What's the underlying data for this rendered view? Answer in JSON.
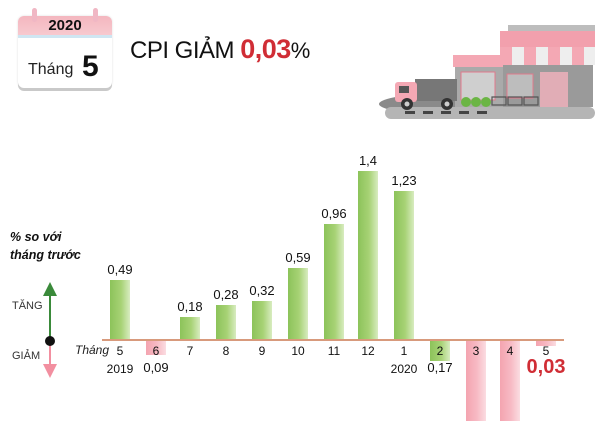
{
  "header": {
    "calendar": {
      "year": "2020",
      "month_label": "Tháng",
      "month_number": "5"
    },
    "headline": {
      "prefix": "CPI GIẢM",
      "value": "0,03",
      "unit": "%"
    },
    "illustration": "store-truck-illustration"
  },
  "legend": {
    "ylabel_line1": "% so với",
    "ylabel_line2": "tháng trước",
    "up_label": "TĂNG",
    "down_label": "GIẢM",
    "x_prefix": "Tháng"
  },
  "colors": {
    "increase": "#a7d275",
    "decrease": "#f7bac4",
    "highlight": "#d02d35",
    "axis": "#d89a7c",
    "up_arrow": "#3a8a3a",
    "down_arrow": "#f28fa0"
  },
  "chart_data": {
    "type": "bar",
    "title": "CPI GIẢM 0,03%",
    "ylabel": "% so với tháng trước",
    "xlabel": "Tháng",
    "categories": [
      "5/2019",
      "6",
      "7",
      "8",
      "9",
      "10",
      "11",
      "12",
      "1/2020",
      "2",
      "3",
      "4",
      "5"
    ],
    "values": [
      0.49,
      -0.09,
      0.18,
      0.28,
      0.32,
      0.59,
      0.96,
      1.4,
      1.23,
      0.17,
      null,
      null,
      -0.03
    ],
    "direction": [
      "up",
      "down",
      "up",
      "up",
      "up",
      "up",
      "up",
      "up",
      "up",
      "up",
      "down",
      "down",
      "down"
    ],
    "value_labels": [
      "0,49",
      "0,09",
      "0,18",
      "0,28",
      "0,32",
      "0,59",
      "0,96",
      "1,4",
      "1,23",
      "0,17",
      "",
      "",
      "0,03"
    ],
    "month_labels": [
      "5",
      "6",
      "7",
      "8",
      "9",
      "10",
      "11",
      "12",
      "1",
      "2",
      "3",
      "4",
      "5"
    ],
    "year_labels": {
      "0": "2019",
      "8": "2020"
    },
    "notes": "Bars for months 3 and 4 of 2020 are decreases extending below the visible frame; their values are not shown.",
    "grid": false
  }
}
